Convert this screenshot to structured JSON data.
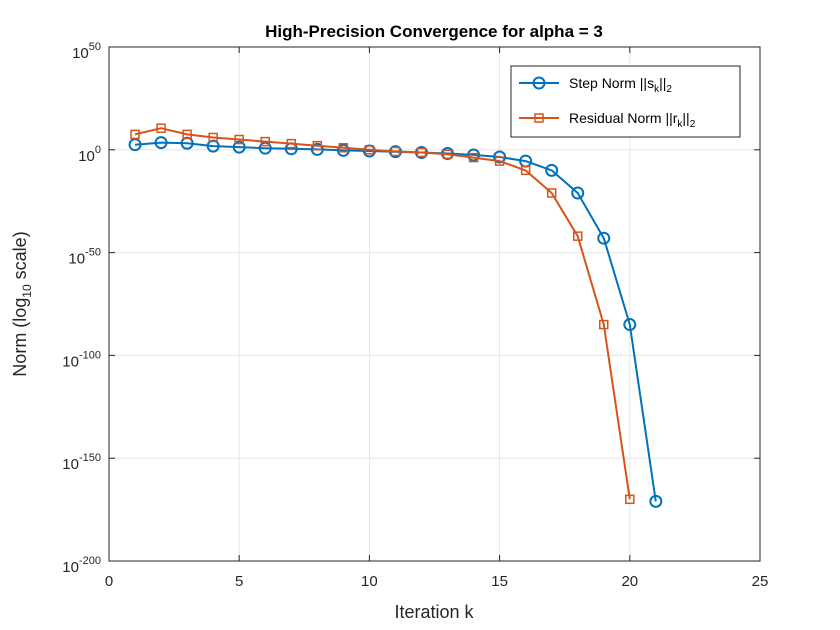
{
  "chart_data": {
    "type": "line",
    "title": "High-Precision Convergence for alpha = 3",
    "xlabel": "Iteration k",
    "ylabel": {
      "prefix": "Norm (log",
      "sub": "10",
      "suffix": " scale)"
    },
    "xlim": [
      0,
      25
    ],
    "x_ticks": [
      0,
      5,
      10,
      15,
      20,
      25
    ],
    "y_scale": "log",
    "ylim_exponent": [
      -200,
      50
    ],
    "y_ticks": [
      {
        "base": "10",
        "exp": "50",
        "value_exp": 50
      },
      {
        "base": "10",
        "exp": "0",
        "value_exp": 0
      },
      {
        "base": "10",
        "exp": "-50",
        "value_exp": -50
      },
      {
        "base": "10",
        "exp": "-100",
        "value_exp": -100
      },
      {
        "base": "10",
        "exp": "-150",
        "value_exp": -150
      },
      {
        "base": "10",
        "exp": "-200",
        "value_exp": -200
      }
    ],
    "grid": true,
    "legend_position": "top-right",
    "series": [
      {
        "name": {
          "prefix": "Step Norm ||s",
          "sub": "k",
          "mid": "||",
          "sub2": "2"
        },
        "color": "#0072BD",
        "marker": "circle",
        "x": [
          1,
          2,
          3,
          4,
          5,
          6,
          7,
          8,
          9,
          10,
          11,
          12,
          13,
          14,
          15,
          16,
          17,
          18,
          19,
          20,
          21
        ],
        "log10_y": [
          2.5,
          3.5,
          3.2,
          1.8,
          1.3,
          0.8,
          0.5,
          0.2,
          -0.3,
          -0.6,
          -0.9,
          -1.3,
          -1.8,
          -2.5,
          -3.5,
          -5.5,
          -10,
          -21,
          -43,
          -85,
          -171
        ]
      },
      {
        "name": {
          "prefix": "Residual Norm ||r",
          "sub": "k",
          "mid": "||",
          "sub2": "2"
        },
        "color": "#D95319",
        "marker": "square",
        "x": [
          1,
          2,
          3,
          4,
          5,
          6,
          7,
          8,
          9,
          10,
          11,
          12,
          13,
          14,
          15,
          16,
          17,
          18,
          19,
          20
        ],
        "log10_y": [
          7.5,
          10.5,
          7.5,
          6,
          5,
          4,
          3,
          2,
          1,
          0,
          -0.8,
          -1.3,
          -2.2,
          -3.8,
          -5.5,
          -10,
          -21,
          -42,
          -85,
          -170
        ]
      }
    ]
  }
}
